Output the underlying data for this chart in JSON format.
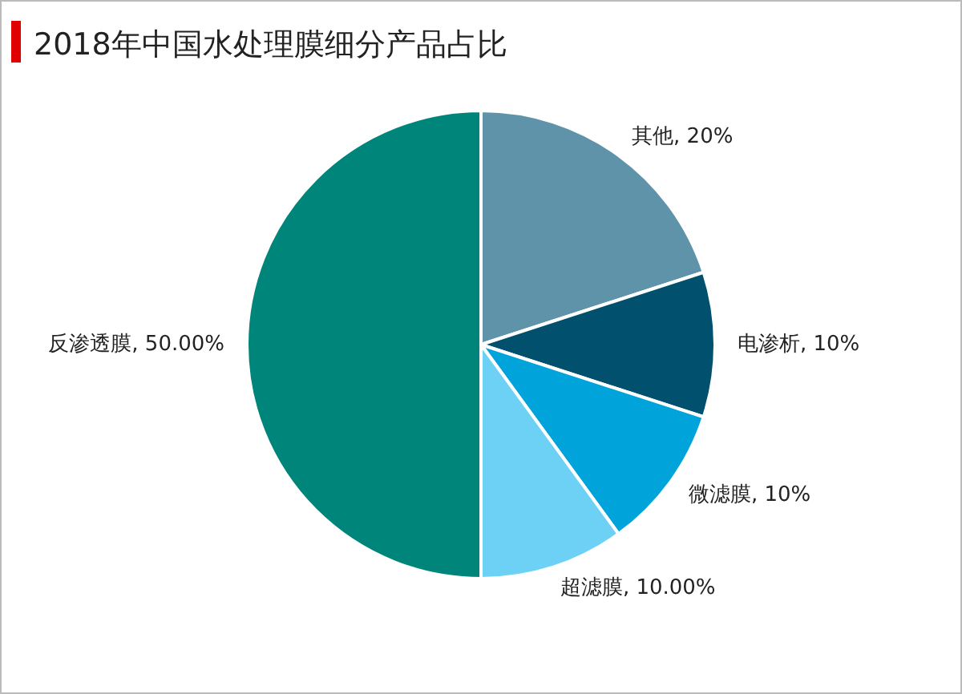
{
  "chart_data": {
    "type": "pie",
    "title": "2018年中国水处理膜细分产品占比",
    "categories": [
      "其他",
      "电渗析",
      "微滤膜",
      "超滤膜",
      "反渗透膜"
    ],
    "values": [
      20,
      10,
      10,
      10,
      50
    ],
    "value_labels": [
      "20%",
      "10%",
      "10%",
      "10.00%",
      "50.00%"
    ],
    "colors": [
      "#5e93aa",
      "#00506e",
      "#00a3da",
      "#6dd1f6",
      "#00857b"
    ],
    "legend": false
  }
}
